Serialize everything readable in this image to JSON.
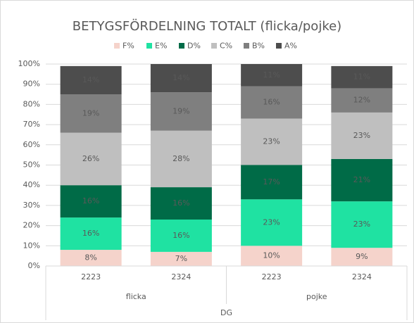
{
  "chart_data": {
    "type": "stacked_bar",
    "title": "BETYGSFÖRDELNING TOTALT  (flicka/pojke)",
    "categories": [
      "2223",
      "2324",
      "2223",
      "2324"
    ],
    "groups": [
      "flicka",
      "pojke"
    ],
    "super_group": "DG",
    "series": [
      {
        "name": "F%",
        "color": "#f5d3cb",
        "label_color": "#404040",
        "values": [
          8,
          7,
          10,
          9
        ],
        "value_labels": [
          "8%",
          "7%",
          "10%",
          "9%"
        ]
      },
      {
        "name": "E%",
        "color": "#1fe2a2",
        "label_color": "#404040",
        "values": [
          16,
          16,
          23,
          23
        ],
        "value_labels": [
          "16%",
          "16%",
          "23%",
          "23%"
        ]
      },
      {
        "name": "D%",
        "color": "#006b47",
        "label_color": "#ffffff",
        "values": [
          16,
          16,
          17,
          21
        ],
        "value_labels": [
          "16%",
          "16%",
          "17%",
          "21%"
        ]
      },
      {
        "name": "C%",
        "color": "#bfbfbf",
        "label_color": "#404040",
        "values": [
          26,
          28,
          23,
          23
        ],
        "value_labels": [
          "26%",
          "28%",
          "23%",
          "23%"
        ]
      },
      {
        "name": "B%",
        "color": "#7f7f7f",
        "label_color": "#ffffff",
        "values": [
          19,
          19,
          16,
          12
        ],
        "value_labels": [
          "19%",
          "19%",
          "16%",
          "12%"
        ]
      },
      {
        "name": "A%",
        "color": "#4d4d4d",
        "label_color": "#ffffff",
        "values": [
          14,
          14,
          11,
          11
        ],
        "value_labels": [
          "14%",
          "14%",
          "11%",
          "11%"
        ]
      }
    ],
    "ylim": [
      0,
      100
    ],
    "yticks": [
      {
        "value": 0,
        "label": "0%"
      },
      {
        "value": 10,
        "label": "10%"
      },
      {
        "value": 20,
        "label": "20%"
      },
      {
        "value": 30,
        "label": "30%"
      },
      {
        "value": 40,
        "label": "40%"
      },
      {
        "value": 50,
        "label": "50%"
      },
      {
        "value": 60,
        "label": "60%"
      },
      {
        "value": 70,
        "label": "70%"
      },
      {
        "value": 80,
        "label": "80%"
      },
      {
        "value": 90,
        "label": "90%"
      },
      {
        "value": 100,
        "label": "100%"
      }
    ],
    "grid": true,
    "legend": "top"
  }
}
